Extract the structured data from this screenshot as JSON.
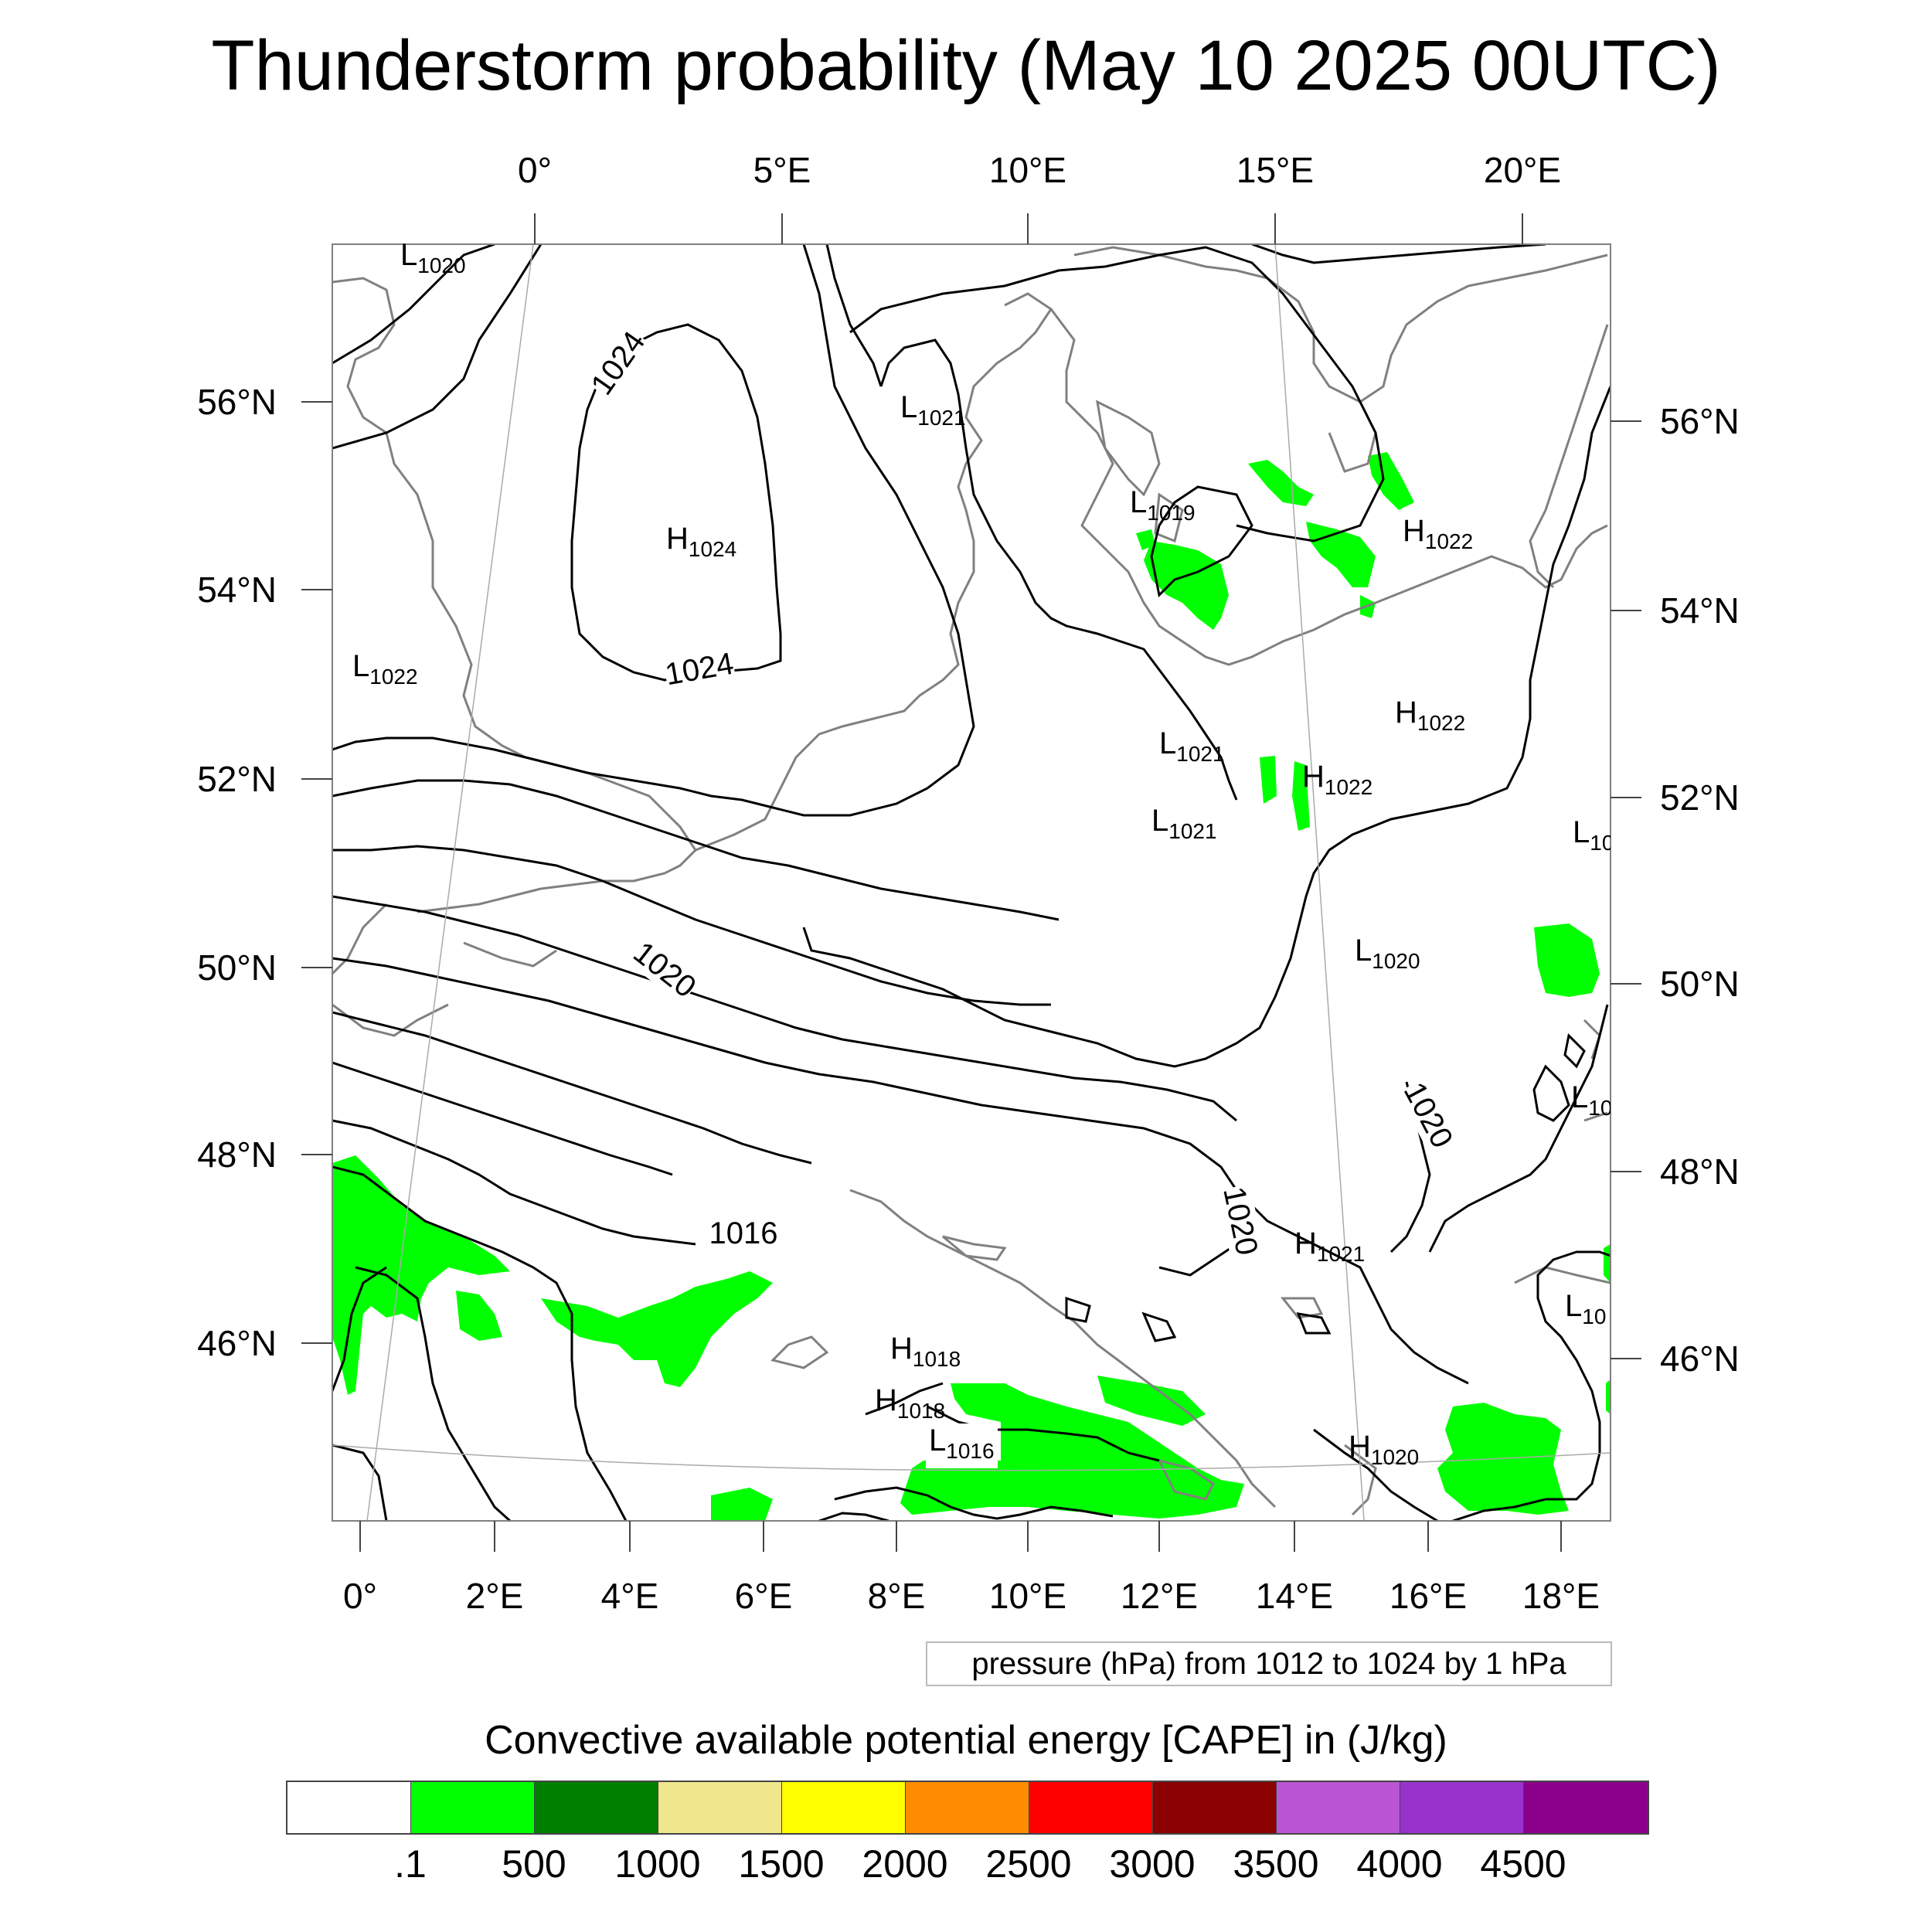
{
  "title": "Thunderstorm probability (May 10 2025 00UTC)",
  "map": {
    "top_longitude_labels": [
      "0°",
      "5°E",
      "10°E",
      "15°E",
      "20°E"
    ],
    "bottom_longitude_labels": [
      "0°",
      "2°E",
      "4°E",
      "6°E",
      "8°E",
      "10°E",
      "12°E",
      "14°E",
      "16°E",
      "18°E"
    ],
    "left_latitude_labels": [
      "56°N",
      "54°N",
      "52°N",
      "50°N",
      "48°N",
      "46°N"
    ],
    "right_latitude_labels": [
      "56°N",
      "54°N",
      "52°N",
      "50°N",
      "48°N",
      "46°N"
    ],
    "contour_labels": [
      "1024",
      "1024",
      "1020",
      "1020",
      "1020",
      "1016"
    ],
    "pressure_centers": [
      {
        "letter": "L",
        "value": "1020"
      },
      {
        "letter": "L",
        "value": "1021"
      },
      {
        "letter": "H",
        "value": "1024"
      },
      {
        "letter": "L",
        "value": "1019"
      },
      {
        "letter": "H",
        "value": "1022"
      },
      {
        "letter": "L",
        "value": "1022"
      },
      {
        "letter": "H",
        "value": "1022"
      },
      {
        "letter": "L",
        "value": "1021"
      },
      {
        "letter": "H",
        "value": "1022"
      },
      {
        "letter": "L",
        "value": "1021"
      },
      {
        "letter": "L",
        "value": "10"
      },
      {
        "letter": "L",
        "value": "1020"
      },
      {
        "letter": "L",
        "value": "10"
      },
      {
        "letter": "H",
        "value": "1021"
      },
      {
        "letter": "L",
        "value": "10"
      },
      {
        "letter": "H",
        "value": "1018"
      },
      {
        "letter": "H",
        "value": "1018"
      },
      {
        "letter": "L",
        "value": "1016"
      },
      {
        "letter": "H",
        "value": "1020"
      }
    ],
    "contour_info": "pressure (hPa) from 1012 to 1024 by 1 hPa",
    "colors": {
      "contour": "#000000",
      "coastline": "#808080",
      "cape_fill": "#00ff00",
      "graticule": "#aaaaaa"
    }
  },
  "colorbar": {
    "title": "Convective available potential energy [CAPE] in (J/kg)",
    "tick_labels": [
      ".1",
      "500",
      "1000",
      "1500",
      "2000",
      "2500",
      "3000",
      "3500",
      "4000",
      "4500"
    ],
    "colors": [
      "#ffffff",
      "#00ff00",
      "#008000",
      "#f0e68c",
      "#ffff00",
      "#ff8c00",
      "#ff0000",
      "#8b0000",
      "#ba55d3",
      "#9932cc",
      "#8b008b"
    ]
  }
}
